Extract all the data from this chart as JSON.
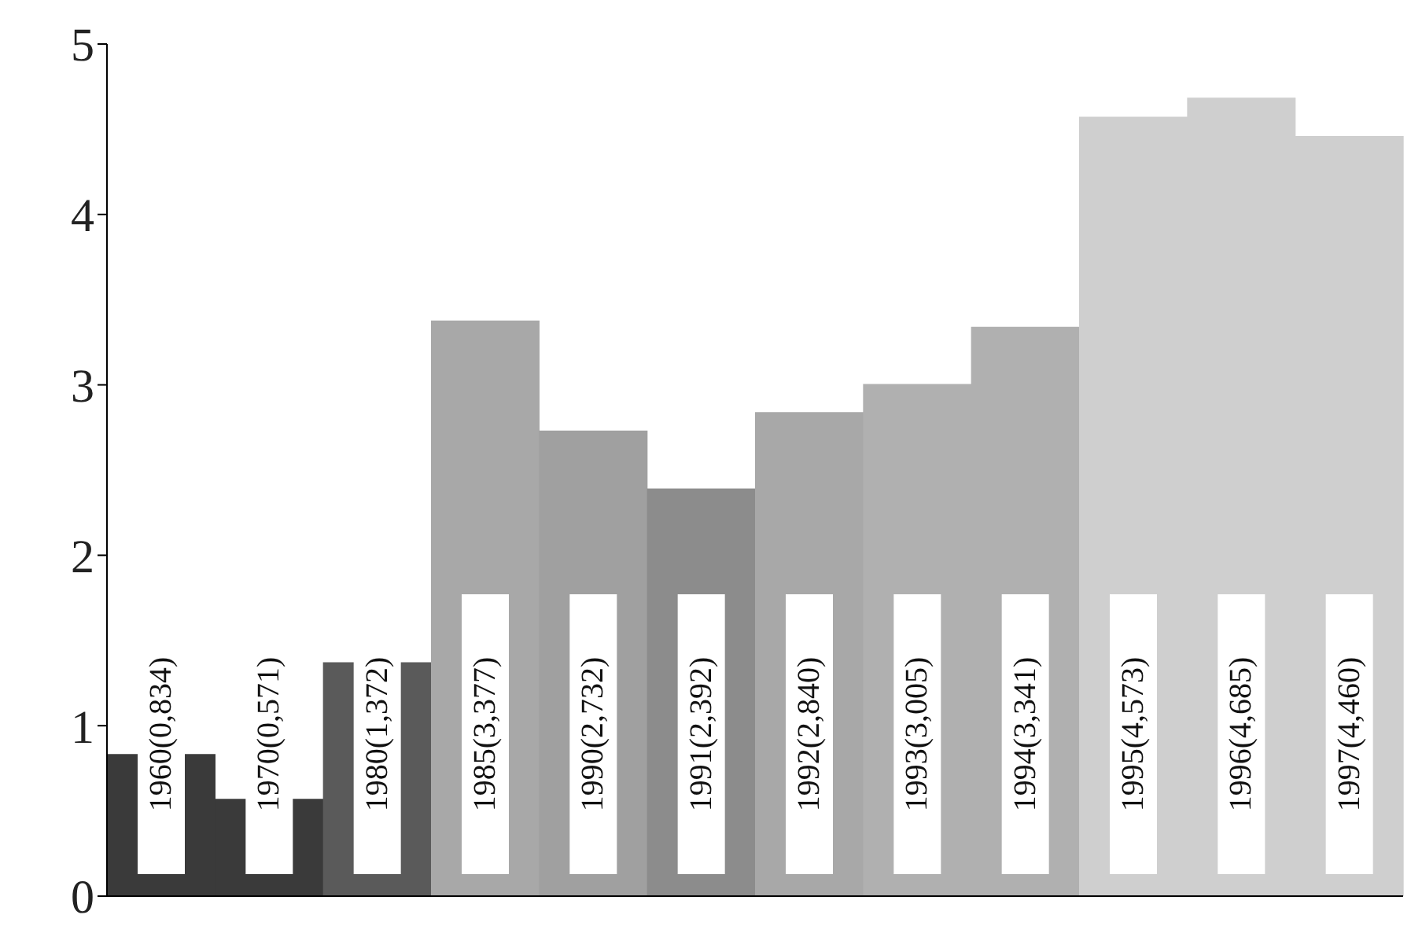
{
  "chart_data": {
    "type": "bar",
    "categories": [
      null,
      null,
      null,
      null,
      null,
      null,
      null,
      null,
      null,
      null,
      null,
      null
    ],
    "values": [
      0.834,
      0.571,
      1.372,
      3.377,
      2.732,
      2.392,
      2.84,
      3.005,
      3.341,
      4.573,
      4.685,
      4.46
    ],
    "colors": [
      "#3a3a3a",
      "#3a3a3a",
      "#5a5a5a",
      "#a8a8a8",
      "#a0a0a0",
      "#8c8c8c",
      "#a8a8a8",
      "#b0b0b0",
      "#b0b0b0",
      "#cfcfcf",
      "#cfcfcf",
      "#cfcfcf"
    ],
    "value_labels": [
      "1960(0,834)",
      "1970(0,571)",
      "1980(1,372)",
      "1985(3,377)",
      "1990(2,732)",
      "1991(2,392)",
      "1992(2,840)",
      "1993(3,005)",
      "1994(3,341)",
      "1995(4,573)",
      "1996(4,685)",
      "1997(4,460)"
    ],
    "ylim": [
      0,
      5
    ],
    "yticks": [
      0,
      1,
      2,
      3,
      4,
      5
    ],
    "grid": false
  }
}
